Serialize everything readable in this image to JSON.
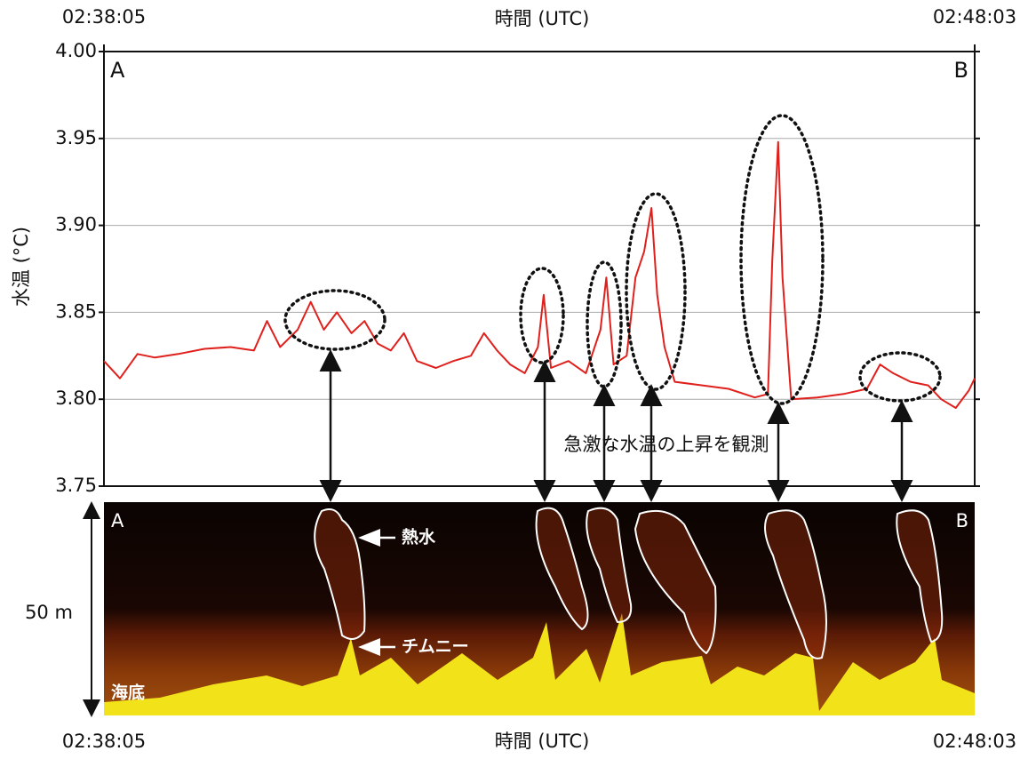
{
  "chart_data": {
    "type": "line",
    "xlabel": "時間 (UTC)",
    "ylabel": "水温 (°C)",
    "xlim": [
      0,
      598
    ],
    "xticks": [
      {
        "value": 0,
        "label": "02:38:05"
      },
      {
        "value": 598,
        "label": "02:48:03"
      }
    ],
    "ylim": [
      3.75,
      4.0
    ],
    "yticks": [
      {
        "value": 3.75,
        "label": "3.75"
      },
      {
        "value": 3.8,
        "label": "3.80"
      },
      {
        "value": 3.85,
        "label": "3.85"
      },
      {
        "value": 3.9,
        "label": "3.90"
      },
      {
        "value": 3.95,
        "label": "3.95"
      },
      {
        "value": 4.0,
        "label": "4.00"
      }
    ],
    "grid": true,
    "color": "#e0201c",
    "x": [
      0,
      11,
      23,
      35,
      51,
      69,
      87,
      103,
      112,
      121,
      133,
      142,
      151,
      160,
      170,
      179,
      188,
      197,
      206,
      215,
      228,
      240,
      252,
      261,
      270,
      279,
      289,
      298,
      302,
      307,
      319,
      331,
      341,
      345,
      350,
      359,
      365,
      371,
      376,
      380,
      385,
      392,
      411,
      429,
      447,
      456,
      459,
      463,
      466,
      472,
      490,
      508,
      524,
      533,
      542,
      554,
      566,
      575,
      585,
      594,
      598
    ],
    "values": [
      3.822,
      3.812,
      3.826,
      3.824,
      3.826,
      3.829,
      3.83,
      3.828,
      3.845,
      3.83,
      3.84,
      3.856,
      3.84,
      3.85,
      3.838,
      3.845,
      3.832,
      3.828,
      3.838,
      3.822,
      3.818,
      3.822,
      3.825,
      3.838,
      3.828,
      3.82,
      3.815,
      3.83,
      3.86,
      3.818,
      3.822,
      3.815,
      3.84,
      3.87,
      3.82,
      3.825,
      3.87,
      3.885,
      3.91,
      3.86,
      3.83,
      3.81,
      3.808,
      3.806,
      3.801,
      3.803,
      3.88,
      3.948,
      3.87,
      3.8,
      3.801,
      3.803,
      3.806,
      3.82,
      3.815,
      3.81,
      3.808,
      3.8,
      3.795,
      3.805,
      3.812
    ],
    "corner_labels": [
      "A",
      "B"
    ],
    "annotation": "急激な水温の上昇を観測"
  },
  "echogram": {
    "xlabel": "時間 (UTC)",
    "xticks": [
      "02:38:05",
      "02:48:03"
    ],
    "corner_labels": [
      "A",
      "B"
    ],
    "depth_label": "50 m",
    "labels": [
      "熱水",
      "チムニー",
      "海底"
    ]
  }
}
